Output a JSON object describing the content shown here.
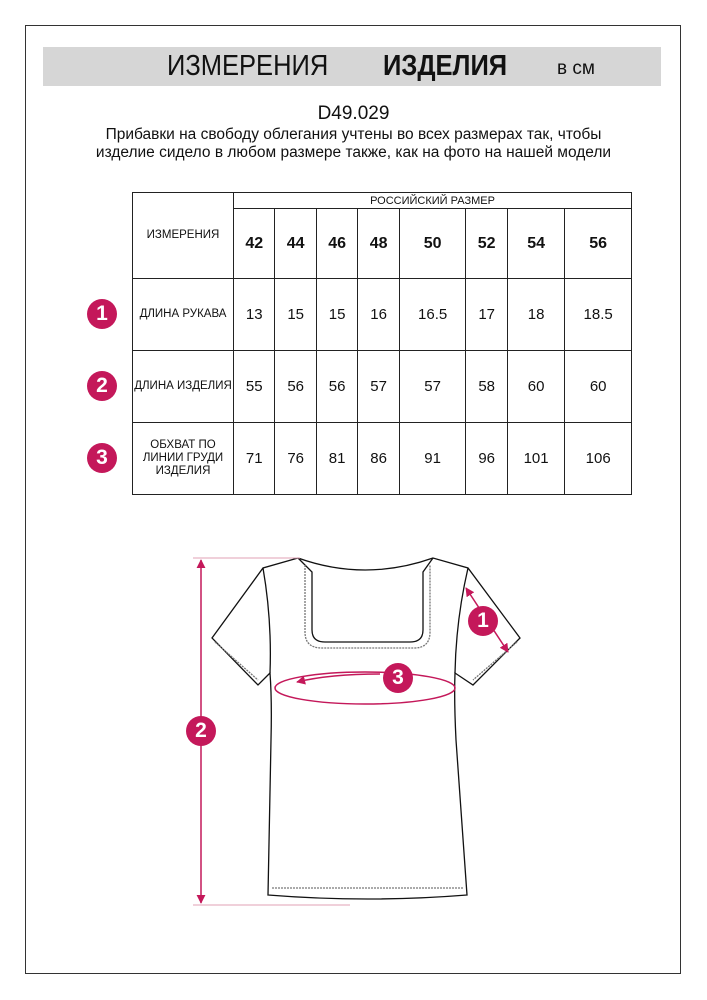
{
  "header": {
    "title_regular": "ИЗМЕРЕНИЯ",
    "title_bold": "ИЗДЕЛИЯ",
    "unit": "в см"
  },
  "product_code": "D49.029",
  "note": "Прибавки на свободу облегания учтены во всех размерах так, чтобы изделие сидело в любом размере также, как на фото на нашей модели",
  "accent_color": "#c4185a",
  "table": {
    "measure_header": "ИЗМЕРЕНИЯ",
    "size_group_header": "РОССИЙСКИЙ РАЗМЕР",
    "sizes": [
      "42",
      "44",
      "46",
      "48",
      "50",
      "52",
      "54",
      "56"
    ],
    "rows": [
      {
        "num": "1",
        "label": "ДЛИНА РУКАВА",
        "values": [
          "13",
          "15",
          "15",
          "16",
          "16.5",
          "17",
          "18",
          "18.5"
        ]
      },
      {
        "num": "2",
        "label": "ДЛИНА ИЗДЕЛИЯ",
        "values": [
          "55",
          "56",
          "56",
          "57",
          "57",
          "58",
          "60",
          "60"
        ]
      },
      {
        "num": "3",
        "label": "ОБХВАТ ПО ЛИНИИ ГРУДИ ИЗДЕЛИЯ",
        "values": [
          "71",
          "76",
          "81",
          "86",
          "91",
          "96",
          "101",
          "106"
        ]
      }
    ]
  },
  "diagram": {
    "markers": [
      "1",
      "2",
      "3"
    ]
  }
}
